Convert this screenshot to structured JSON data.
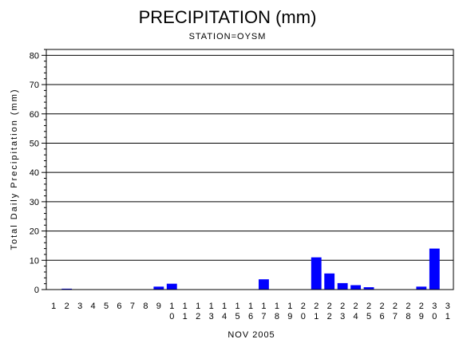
{
  "chart_data": {
    "type": "bar",
    "title": "PRECIPITATION (mm)",
    "subtitle": "STATION=OYSM",
    "ylabel": "Total Daily Precipitation (mm)",
    "xlabel": "NOV 2005",
    "ylim": [
      0,
      82
    ],
    "yticks": [
      0,
      10,
      20,
      30,
      40,
      50,
      60,
      70,
      80
    ],
    "grid": true,
    "bar_color": "#0000ff",
    "categories": [
      "1",
      "2",
      "3",
      "4",
      "5",
      "6",
      "7",
      "8",
      "9",
      "10",
      "11",
      "12",
      "13",
      "14",
      "15",
      "16",
      "17",
      "18",
      "19",
      "20",
      "21",
      "22",
      "23",
      "24",
      "25",
      "26",
      "27",
      "28",
      "29",
      "30",
      "31"
    ],
    "values": [
      0,
      0.3,
      0,
      0,
      0,
      0,
      0,
      0,
      1.0,
      2.0,
      0,
      0,
      0,
      0,
      0,
      0,
      3.5,
      0,
      0,
      0,
      11.0,
      5.5,
      2.2,
      1.5,
      0.8,
      0,
      0,
      0,
      1.0,
      14.0,
      0
    ]
  }
}
